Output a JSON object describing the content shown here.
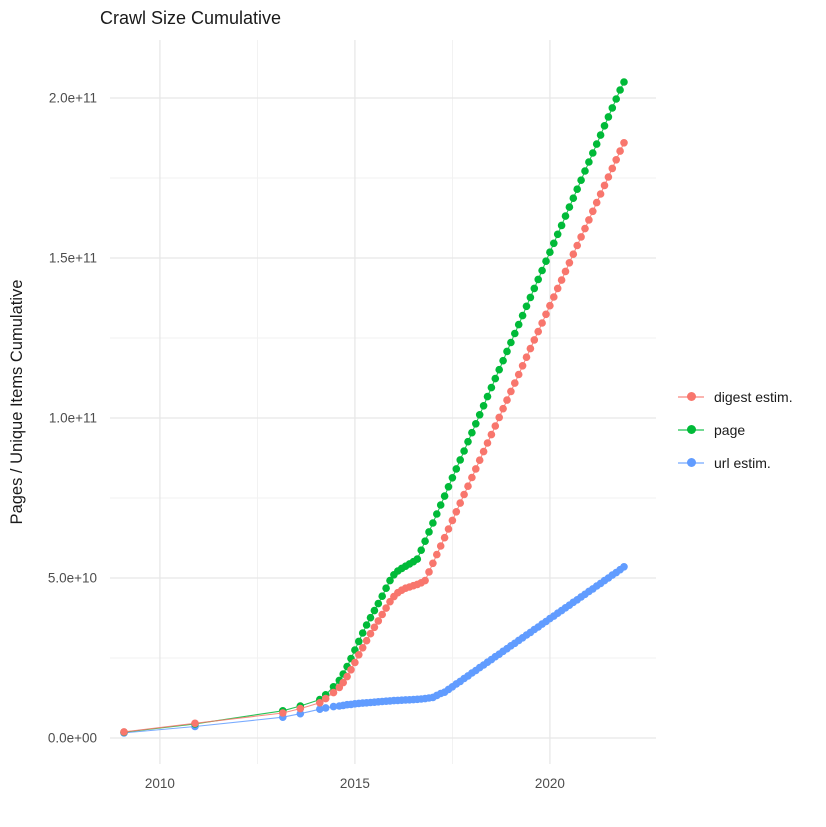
{
  "title": "Crawl Size Cumulative",
  "colors": {
    "digest": "#F8766D",
    "page": "#00BA38",
    "url": "#619CFF",
    "grid_major": "#e7e7e7",
    "grid_minor": "#f1f1f1",
    "tick_text": "#4d4d4d",
    "axis_title_text": "#1a1a1a",
    "background": "#ffffff"
  },
  "legend": {
    "items": [
      {
        "label": "digest estim.",
        "color": "#F8766D"
      },
      {
        "label": "page",
        "color": "#00BA38"
      },
      {
        "label": "url estim.",
        "color": "#619CFF"
      }
    ]
  },
  "chart_data": {
    "type": "scatter",
    "title": "Crawl Size Cumulative",
    "xlabel": "",
    "ylabel": "Pages / Unique Items Cumulative",
    "value_unit": 1000000000,
    "x_range": [
      2008.72,
      2022.72
    ],
    "y_range_e9": [
      -8.125,
      218.125
    ],
    "x_ticks": [
      {
        "v": 2010,
        "label": "2010"
      },
      {
        "v": 2015,
        "label": "2015"
      },
      {
        "v": 2020,
        "label": "2020"
      }
    ],
    "x_minor": [
      2012.5,
      2017.5
    ],
    "y_ticks": [
      {
        "v": 0,
        "label": "0.0e+00"
      },
      {
        "v": 50,
        "label": "5.0e+10"
      },
      {
        "v": 100,
        "label": "1.0e+11"
      },
      {
        "v": 150,
        "label": "1.5e+11"
      },
      {
        "v": 200,
        "label": "2.0e+11"
      }
    ],
    "y_minor": [
      25,
      75,
      125,
      175
    ],
    "legend_position": "right",
    "grid": true,
    "draw_order": [
      "url estim.",
      "page",
      "digest estim."
    ],
    "series": [
      {
        "name": "digest estim.",
        "color": "#F8766D",
        "points_year_value_e9": [
          [
            2009.08,
            1.9
          ],
          [
            2010.9,
            4.6
          ],
          [
            2013.15,
            7.8
          ],
          [
            2013.6,
            9.2
          ],
          [
            2014.1,
            11
          ],
          [
            2014.25,
            12.3
          ],
          [
            2014.45,
            14.2
          ],
          [
            2014.6,
            15.8
          ],
          [
            2014.7,
            17.3
          ],
          [
            2014.8,
            19.2
          ],
          [
            2014.9,
            21.3
          ],
          [
            2015.0,
            23.6
          ],
          [
            2015.1,
            26
          ],
          [
            2015.2,
            28.2
          ],
          [
            2015.3,
            30.4
          ],
          [
            2015.4,
            32.6
          ],
          [
            2015.5,
            34.6
          ],
          [
            2015.6,
            36.6
          ],
          [
            2015.7,
            38.6
          ],
          [
            2015.8,
            40.6
          ],
          [
            2015.9,
            42.6
          ],
          [
            2016.0,
            44.2
          ],
          [
            2016.1,
            45.4
          ],
          [
            2016.2,
            46.2
          ],
          [
            2016.3,
            46.8
          ],
          [
            2016.4,
            47.2
          ],
          [
            2016.5,
            47.6
          ],
          [
            2016.6,
            48
          ],
          [
            2016.7,
            48.5
          ],
          [
            2016.8,
            49.2
          ],
          [
            2016.9,
            51.9
          ],
          [
            2017.0,
            54.6
          ],
          [
            2017.1,
            57.3
          ],
          [
            2017.2,
            60
          ],
          [
            2017.3,
            62.6
          ],
          [
            2017.4,
            65.3
          ],
          [
            2017.5,
            68
          ],
          [
            2017.6,
            70.7
          ],
          [
            2017.7,
            73.4
          ],
          [
            2017.8,
            76.1
          ],
          [
            2017.9,
            78.7
          ],
          [
            2018.0,
            81.4
          ],
          [
            2018.1,
            84.1
          ],
          [
            2018.2,
            86.8
          ],
          [
            2018.3,
            89.5
          ],
          [
            2018.4,
            92.2
          ],
          [
            2018.5,
            94.8
          ],
          [
            2018.6,
            97.5
          ],
          [
            2018.7,
            100.2
          ],
          [
            2018.8,
            102.9
          ],
          [
            2018.9,
            105.6
          ],
          [
            2019.0,
            108.3
          ],
          [
            2019.1,
            110.9
          ],
          [
            2019.2,
            113.6
          ],
          [
            2019.3,
            116.3
          ],
          [
            2019.4,
            119
          ],
          [
            2019.5,
            121.7
          ],
          [
            2019.6,
            124.4
          ],
          [
            2019.7,
            127
          ],
          [
            2019.8,
            129.7
          ],
          [
            2019.9,
            132.4
          ],
          [
            2020.0,
            135.1
          ],
          [
            2020.1,
            137.8
          ],
          [
            2020.2,
            140.5
          ],
          [
            2020.3,
            143.1
          ],
          [
            2020.4,
            145.8
          ],
          [
            2020.5,
            148.5
          ],
          [
            2020.6,
            151.2
          ],
          [
            2020.7,
            153.9
          ],
          [
            2020.8,
            156.6
          ],
          [
            2020.9,
            159.2
          ],
          [
            2021.0,
            161.9
          ],
          [
            2021.1,
            164.6
          ],
          [
            2021.2,
            167.3
          ],
          [
            2021.3,
            170
          ],
          [
            2021.4,
            172.7
          ],
          [
            2021.5,
            175.3
          ],
          [
            2021.6,
            178
          ],
          [
            2021.7,
            180.7
          ],
          [
            2021.8,
            183.4
          ],
          [
            2021.9,
            186
          ]
        ]
      },
      {
        "name": "page",
        "color": "#00BA38",
        "points_year_value_e9": [
          [
            2009.08,
            1.8
          ],
          [
            2010.9,
            4.4
          ],
          [
            2013.15,
            8.5
          ],
          [
            2013.6,
            10
          ],
          [
            2014.1,
            12
          ],
          [
            2014.25,
            13.5
          ],
          [
            2014.45,
            16
          ],
          [
            2014.6,
            18
          ],
          [
            2014.7,
            20
          ],
          [
            2014.8,
            22.3
          ],
          [
            2014.9,
            24.8
          ],
          [
            2015.0,
            27.5
          ],
          [
            2015.1,
            30.2
          ],
          [
            2015.2,
            32.8
          ],
          [
            2015.3,
            35.3
          ],
          [
            2015.4,
            37.6
          ],
          [
            2015.5,
            39.8
          ],
          [
            2015.6,
            42
          ],
          [
            2015.7,
            44.3
          ],
          [
            2015.8,
            46.8
          ],
          [
            2015.9,
            49.2
          ],
          [
            2016.0,
            51
          ],
          [
            2016.1,
            52.2
          ],
          [
            2016.2,
            53
          ],
          [
            2016.3,
            53.7
          ],
          [
            2016.4,
            54.4
          ],
          [
            2016.5,
            55.1
          ],
          [
            2016.6,
            55.9
          ],
          [
            2016.7,
            58.7
          ],
          [
            2016.8,
            61.5
          ],
          [
            2016.9,
            64.4
          ],
          [
            2017.0,
            67.2
          ],
          [
            2017.1,
            70
          ],
          [
            2017.2,
            72.8
          ],
          [
            2017.3,
            75.6
          ],
          [
            2017.4,
            78.5
          ],
          [
            2017.5,
            81.3
          ],
          [
            2017.6,
            84.1
          ],
          [
            2017.7,
            86.9
          ],
          [
            2017.8,
            89.7
          ],
          [
            2017.9,
            92.6
          ],
          [
            2018.0,
            95.4
          ],
          [
            2018.1,
            98.2
          ],
          [
            2018.2,
            101
          ],
          [
            2018.3,
            103.8
          ],
          [
            2018.4,
            106.7
          ],
          [
            2018.5,
            109.5
          ],
          [
            2018.6,
            112.3
          ],
          [
            2018.7,
            115.1
          ],
          [
            2018.8,
            117.9
          ],
          [
            2018.9,
            120.8
          ],
          [
            2019.0,
            123.6
          ],
          [
            2019.1,
            126.4
          ],
          [
            2019.2,
            129.2
          ],
          [
            2019.3,
            132
          ],
          [
            2019.4,
            134.9
          ],
          [
            2019.5,
            137.7
          ],
          [
            2019.6,
            140.5
          ],
          [
            2019.7,
            143.3
          ],
          [
            2019.8,
            146.1
          ],
          [
            2019.9,
            149
          ],
          [
            2020.0,
            151.8
          ],
          [
            2020.1,
            154.6
          ],
          [
            2020.2,
            157.4
          ],
          [
            2020.3,
            160.2
          ],
          [
            2020.4,
            163.1
          ],
          [
            2020.5,
            165.9
          ],
          [
            2020.6,
            168.7
          ],
          [
            2020.7,
            171.5
          ],
          [
            2020.8,
            174.3
          ],
          [
            2020.9,
            177.2
          ],
          [
            2021.0,
            180
          ],
          [
            2021.1,
            182.8
          ],
          [
            2021.2,
            185.6
          ],
          [
            2021.3,
            188.4
          ],
          [
            2021.4,
            191.3
          ],
          [
            2021.5,
            194.1
          ],
          [
            2021.6,
            196.9
          ],
          [
            2021.7,
            199.7
          ],
          [
            2021.8,
            202.5
          ],
          [
            2021.9,
            205
          ]
        ]
      },
      {
        "name": "url estim.",
        "color": "#619CFF",
        "points_year_value_e9": [
          [
            2009.08,
            1.6
          ],
          [
            2010.9,
            3.6
          ],
          [
            2013.15,
            6.5
          ],
          [
            2013.6,
            7.6
          ],
          [
            2014.1,
            9
          ],
          [
            2014.25,
            9.4
          ],
          [
            2014.45,
            9.8
          ],
          [
            2014.6,
            10
          ],
          [
            2014.7,
            10.2
          ],
          [
            2014.8,
            10.4
          ],
          [
            2014.9,
            10.5
          ],
          [
            2015.0,
            10.7
          ],
          [
            2015.1,
            10.8
          ],
          [
            2015.2,
            10.9
          ],
          [
            2015.3,
            11
          ],
          [
            2015.4,
            11.1
          ],
          [
            2015.5,
            11.2
          ],
          [
            2015.6,
            11.3
          ],
          [
            2015.7,
            11.4
          ],
          [
            2015.8,
            11.5
          ],
          [
            2015.9,
            11.6
          ],
          [
            2016.0,
            11.7
          ],
          [
            2016.1,
            11.75
          ],
          [
            2016.2,
            11.8
          ],
          [
            2016.3,
            11.9
          ],
          [
            2016.4,
            11.95
          ],
          [
            2016.5,
            12
          ],
          [
            2016.6,
            12.1
          ],
          [
            2016.7,
            12.2
          ],
          [
            2016.8,
            12.3
          ],
          [
            2016.9,
            12.5
          ],
          [
            2017.0,
            12.7
          ],
          [
            2017.1,
            13.3
          ],
          [
            2017.2,
            13.9
          ],
          [
            2017.3,
            14.3
          ],
          [
            2017.4,
            15.2
          ],
          [
            2017.5,
            16
          ],
          [
            2017.6,
            16.9
          ],
          [
            2017.7,
            17.7
          ],
          [
            2017.8,
            18.6
          ],
          [
            2017.9,
            19.4
          ],
          [
            2018.0,
            20.3
          ],
          [
            2018.1,
            21.1
          ],
          [
            2018.2,
            22
          ],
          [
            2018.3,
            22.8
          ],
          [
            2018.4,
            23.7
          ],
          [
            2018.5,
            24.5
          ],
          [
            2018.6,
            25.4
          ],
          [
            2018.7,
            26.2
          ],
          [
            2018.8,
            27.1
          ],
          [
            2018.9,
            27.9
          ],
          [
            2019.0,
            28.8
          ],
          [
            2019.1,
            29.6
          ],
          [
            2019.2,
            30.5
          ],
          [
            2019.3,
            31.3
          ],
          [
            2019.4,
            32.2
          ],
          [
            2019.5,
            33
          ],
          [
            2019.6,
            33.9
          ],
          [
            2019.7,
            34.7
          ],
          [
            2019.8,
            35.6
          ],
          [
            2019.9,
            36.4
          ],
          [
            2020.0,
            37.3
          ],
          [
            2020.1,
            38.1
          ],
          [
            2020.2,
            39
          ],
          [
            2020.3,
            39.8
          ],
          [
            2020.4,
            40.7
          ],
          [
            2020.5,
            41.5
          ],
          [
            2020.6,
            42.4
          ],
          [
            2020.7,
            43.2
          ],
          [
            2020.8,
            44.1
          ],
          [
            2020.9,
            44.9
          ],
          [
            2021.0,
            45.8
          ],
          [
            2021.1,
            46.6
          ],
          [
            2021.2,
            47.5
          ],
          [
            2021.3,
            48.3
          ],
          [
            2021.4,
            49.2
          ],
          [
            2021.5,
            50
          ],
          [
            2021.6,
            50.9
          ],
          [
            2021.7,
            51.7
          ],
          [
            2021.8,
            52.6
          ],
          [
            2021.9,
            53.5
          ]
        ]
      }
    ]
  }
}
